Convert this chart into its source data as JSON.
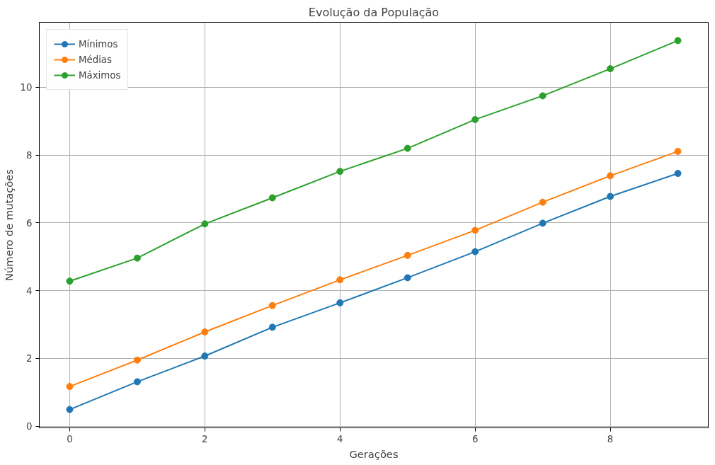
{
  "chart_data": {
    "type": "line",
    "title": "Evolução da População",
    "xlabel": "Gerações",
    "ylabel": "Número de mutações",
    "x": [
      0,
      1,
      2,
      3,
      4,
      5,
      6,
      7,
      8,
      9
    ],
    "series": [
      {
        "name": "Mínimos",
        "color": "#1f77b4",
        "values": [
          0.49,
          1.31,
          2.07,
          2.92,
          3.64,
          4.38,
          5.15,
          5.99,
          6.78,
          7.46
        ]
      },
      {
        "name": "Médias",
        "color": "#ff7f0e",
        "values": [
          1.17,
          1.95,
          2.78,
          3.56,
          4.32,
          5.04,
          5.78,
          6.61,
          7.39,
          8.11
        ]
      },
      {
        "name": "Máximos",
        "color": "#2ca02c",
        "values": [
          4.28,
          4.96,
          5.97,
          6.74,
          7.52,
          8.2,
          9.05,
          9.75,
          10.55,
          11.38
        ]
      }
    ],
    "xlim": [
      -0.45,
      9.45
    ],
    "ylim": [
      -0.05,
      11.92
    ],
    "xticks": [
      0,
      2,
      4,
      6,
      8
    ],
    "yticks": [
      0,
      2,
      4,
      6,
      8,
      10
    ],
    "grid": true,
    "legend": "top left",
    "marker": "circle",
    "line_style": "solid"
  }
}
